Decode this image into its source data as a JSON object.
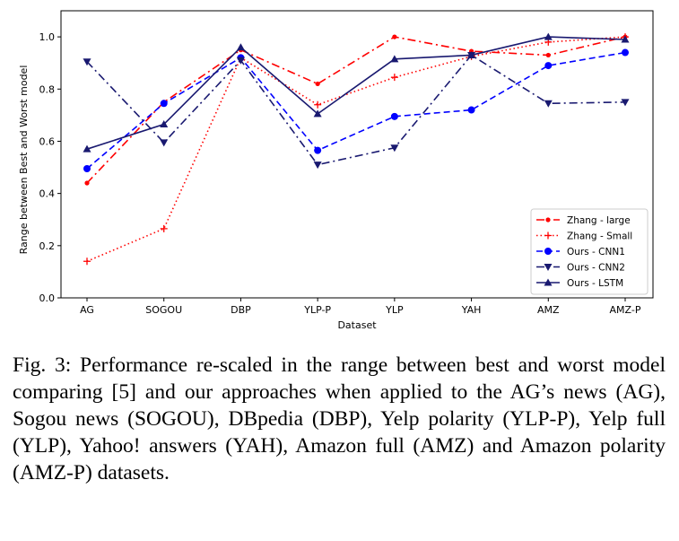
{
  "chart_data": {
    "type": "line",
    "title": "",
    "xlabel": "Dataset",
    "ylabel": "Range between Best and Worst model",
    "categories": [
      "AG",
      "SOGOU",
      "DBP",
      "YLP-P",
      "YLP",
      "YAH",
      "AMZ",
      "AMZ-P"
    ],
    "ylim": [
      0.0,
      1.1
    ],
    "yticks": [
      0.0,
      0.2,
      0.4,
      0.6,
      0.8,
      1.0
    ],
    "ytick_labels": [
      "0.0",
      "0.2",
      "0.4",
      "0.6",
      "0.8",
      "1.0"
    ],
    "grid": false,
    "legend_position": "lower-right",
    "series": [
      {
        "name": "Zhang - large",
        "color": "#ff0000",
        "linestyle": "dashdot",
        "marker": "dot",
        "values": [
          0.44,
          0.75,
          0.95,
          0.82,
          1.0,
          0.945,
          0.93,
          1.0
        ]
      },
      {
        "name": "Zhang - Small",
        "color": "#ff0000",
        "linestyle": "dotted",
        "marker": "plus",
        "values": [
          0.14,
          0.265,
          0.92,
          0.74,
          0.845,
          0.925,
          0.98,
          1.0
        ]
      },
      {
        "name": "Ours - CNN1",
        "color": "#0000ff",
        "linestyle": "dashed",
        "marker": "circle",
        "values": [
          0.495,
          0.745,
          0.92,
          0.565,
          0.695,
          0.72,
          0.89,
          0.94
        ]
      },
      {
        "name": "Ours - CNN2",
        "color": "#191970",
        "linestyle": "dashdot",
        "marker": "triangle-down",
        "values": [
          0.905,
          0.595,
          0.91,
          0.51,
          0.575,
          0.93,
          0.745,
          0.75
        ]
      },
      {
        "name": "Ours - LSTM",
        "color": "#191970",
        "linestyle": "solid",
        "marker": "triangle-up",
        "values": [
          0.57,
          0.665,
          0.96,
          0.705,
          0.915,
          0.93,
          1.0,
          0.99
        ]
      }
    ]
  },
  "caption": {
    "text": "Fig. 3: Performance re-scaled in the range between best and worst model comparing [5] and our approaches when applied to the AG’s news (AG), Sogou news (SOGOU), DBpedia (DBP), Yelp polarity (YLP-P), Yelp full (YLP), Yahoo! answers (YAH), Amazon full (AMZ) and Amazon polarity (AMZ-P) datasets."
  }
}
